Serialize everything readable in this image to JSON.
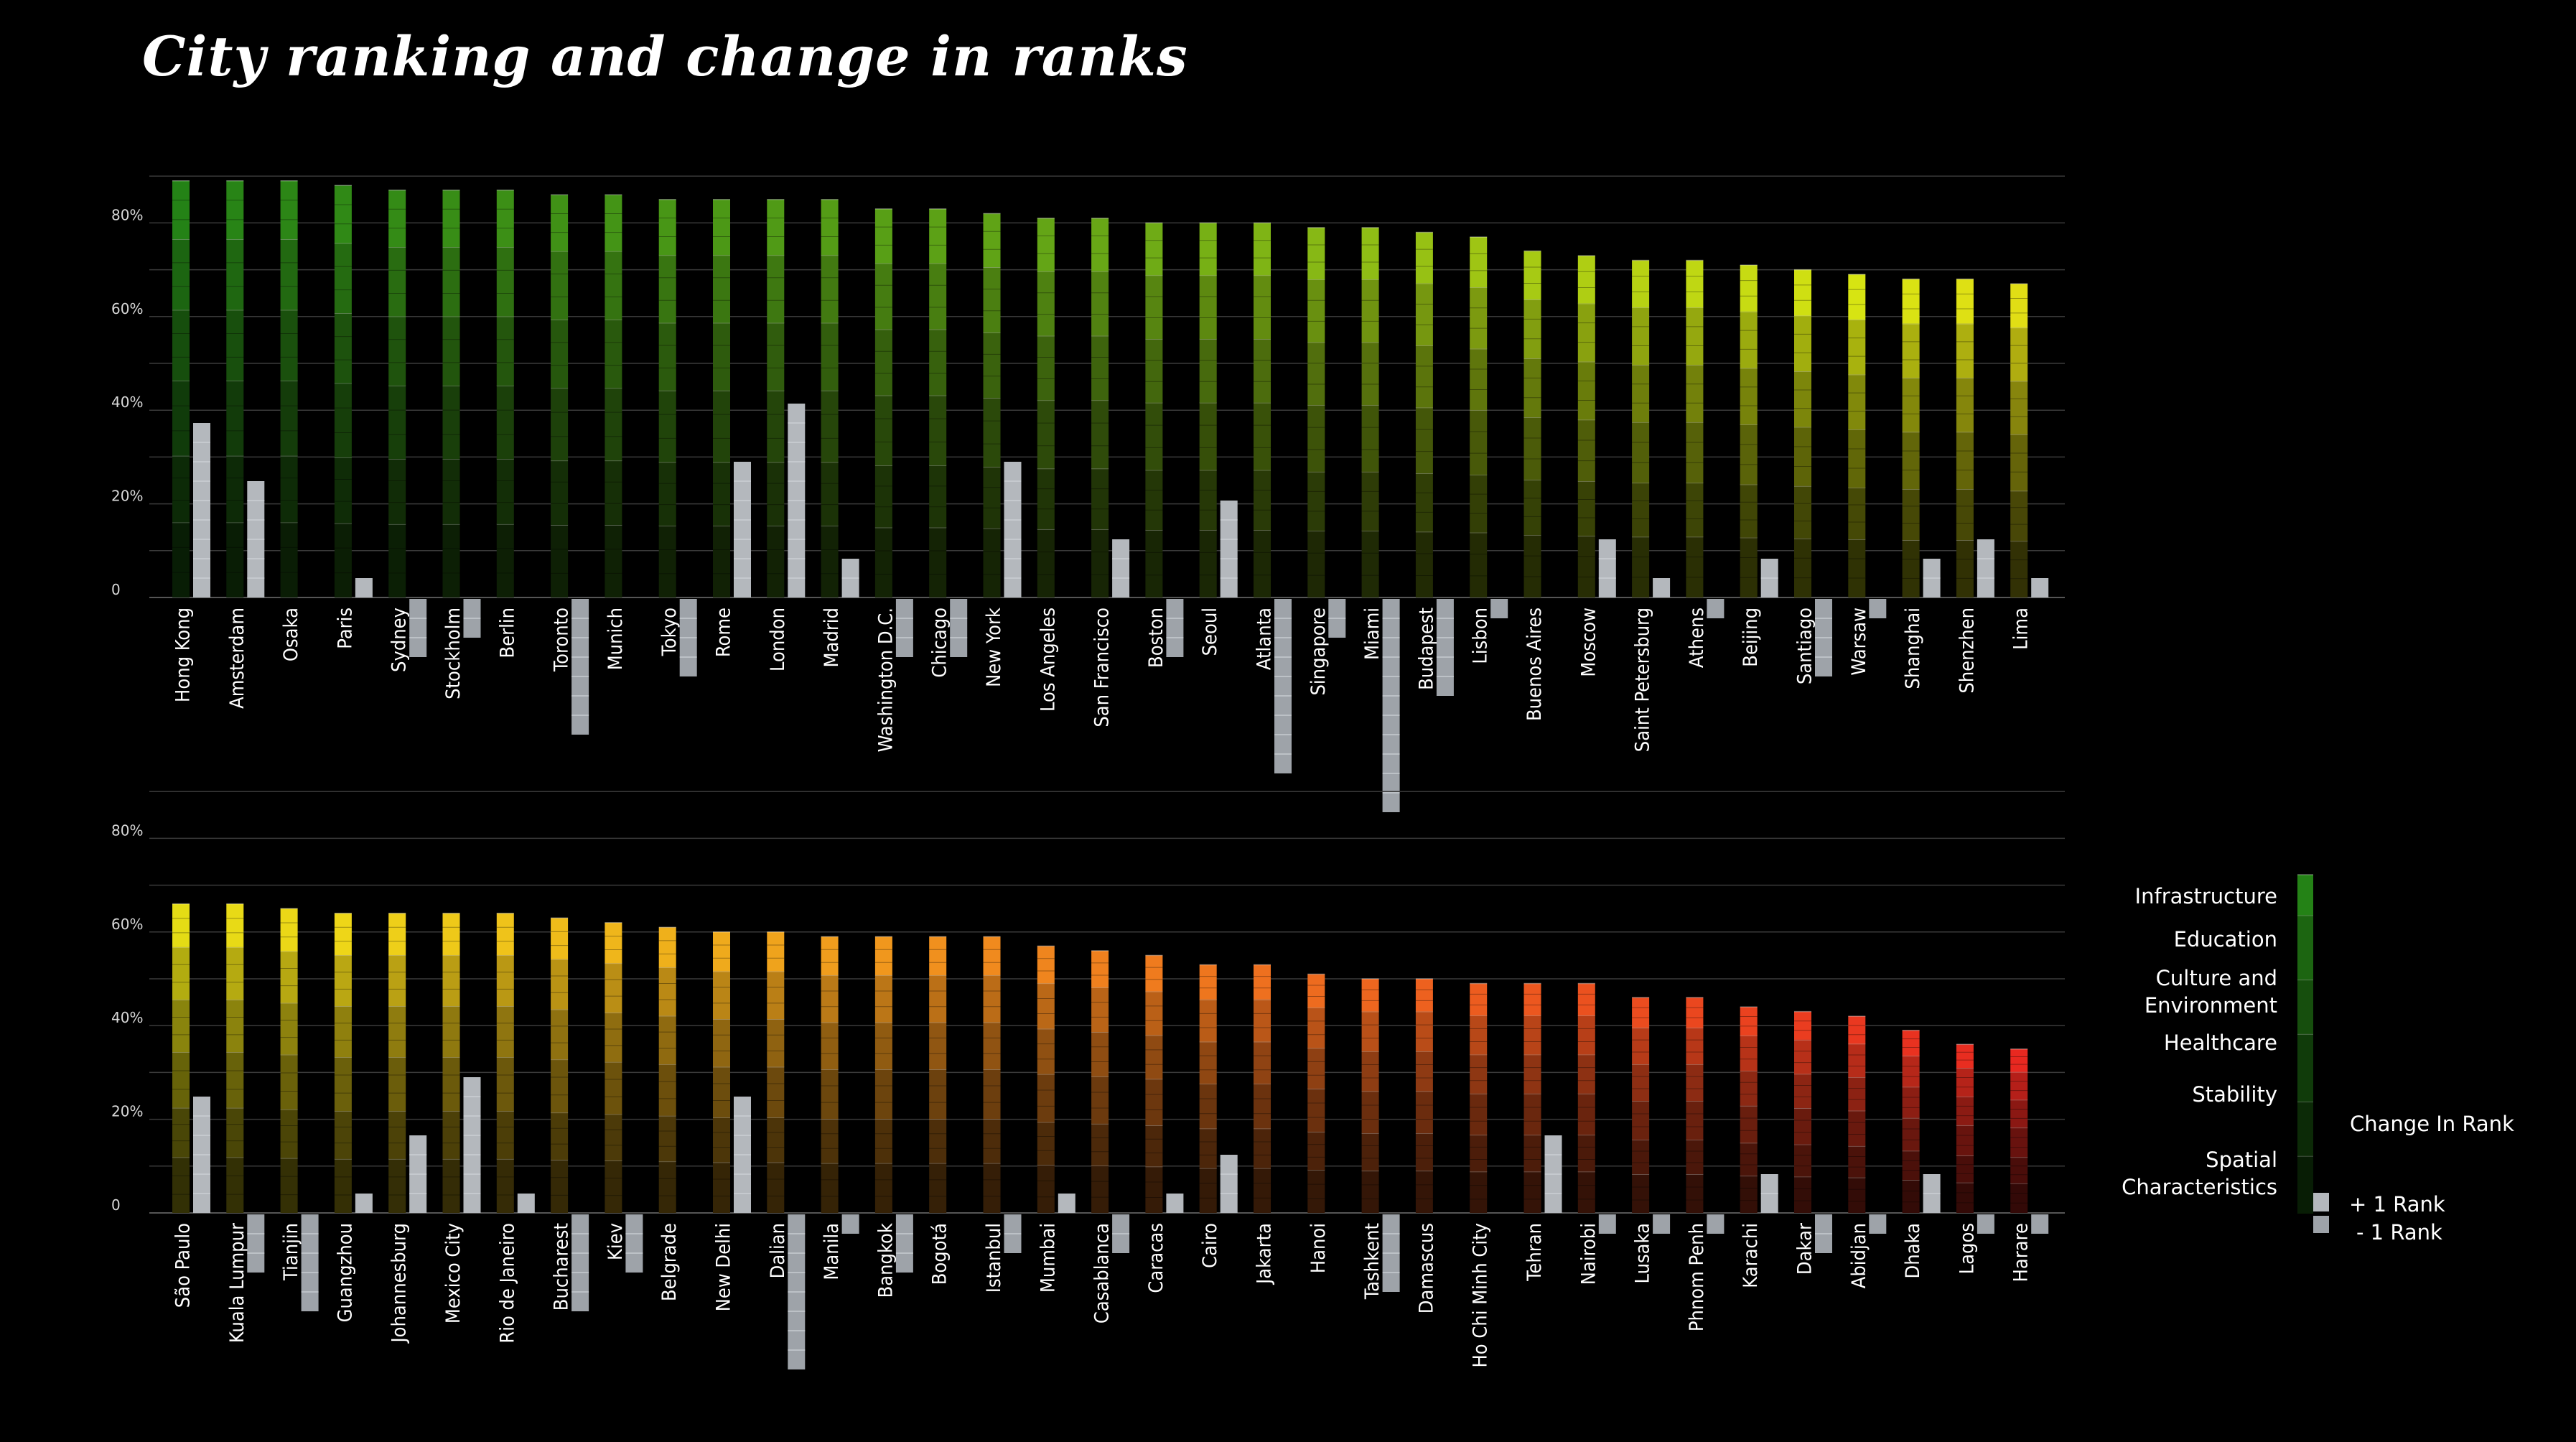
{
  "title": "City ranking and change in ranks",
  "chart_data": {
    "type": "bar",
    "stacked": true,
    "yticks": [
      "80%",
      "60%",
      "40%",
      "20%",
      "0"
    ],
    "ylim": [
      0,
      100
    ],
    "grid": true,
    "legend_position": "right",
    "components": [
      "Infrastructure",
      "Education",
      "Culture and Environment",
      "Healthcare",
      "Stability",
      "Spatial Characteristics"
    ],
    "rank_change_legend": {
      "title": "Change In Rank",
      "plus": "+ 1 Rank",
      "minus": "- 1 Rank"
    },
    "panels": [
      {
        "categories": [
          "Hong Kong",
          "Amsterdam",
          "Osaka",
          "Paris",
          "Sydney",
          "Stockholm",
          "Berlin",
          "Toronto",
          "Munich",
          "Tokyo",
          "Rome",
          "London",
          "Madrid",
          "Washington  D.C.",
          "Chicago",
          "New York",
          "Los Angeles",
          "San  Francisco",
          "Boston",
          "Seoul",
          "Atlanta",
          "Singapore",
          "Miami",
          "Budapest",
          "Lisbon",
          "Buenos  Aires",
          "Moscow",
          "Saint Petersburg",
          "Athens",
          "Beijing",
          "Santiago",
          "Warsaw",
          "Shanghai",
          "Shenzhen",
          "Lima"
        ],
        "values": [
          89,
          89,
          89,
          88,
          87,
          87,
          87,
          86,
          86,
          85,
          85,
          85,
          85,
          83,
          83,
          82,
          81,
          81,
          80,
          80,
          80,
          79,
          79,
          78,
          77,
          74,
          73,
          72,
          72,
          71,
          70,
          69,
          68,
          68,
          67
        ],
        "rank_change": [
          9,
          6,
          0,
          1,
          -3,
          -2,
          0,
          -7,
          0,
          -4,
          7,
          10,
          2,
          -3,
          -3,
          7,
          0,
          3,
          -3,
          5,
          -9,
          -2,
          -11,
          -5,
          -1,
          0,
          3,
          1,
          -1,
          2,
          -4,
          -1,
          2,
          3,
          1
        ]
      },
      {
        "categories": [
          "São Paulo",
          "Kuala Lumpur",
          "Tianjin",
          "Guangzhou",
          "Johannesburg",
          "Mexico City",
          "Rio de Janeiro",
          "Bucharest",
          "Kiev",
          "Belgrade",
          "New Delhi",
          "Dalian",
          "Manila",
          "Bangkok",
          "Bogotá",
          "Istanbul",
          "Mumbai",
          "Casablanca",
          "Caracas",
          "Cairo",
          "Jakarta",
          "Hanoi",
          "Tashkent",
          "Damascus",
          "Ho Chi Minh City",
          "Tehran",
          "Nairobi",
          "Lusaka",
          "Phnom Penh",
          "Karachi",
          "Dakar",
          "Abidjan",
          "Dhaka",
          "Lagos",
          "Harare"
        ],
        "values": [
          66,
          66,
          65,
          64,
          64,
          64,
          64,
          63,
          62,
          61,
          60,
          60,
          59,
          59,
          59,
          59,
          57,
          56,
          55,
          53,
          53,
          51,
          50,
          50,
          49,
          49,
          49,
          46,
          46,
          44,
          43,
          42,
          39,
          36,
          35
        ],
        "rank_change": [
          6,
          -3,
          -5,
          1,
          4,
          7,
          1,
          -5,
          -3,
          0,
          6,
          -8,
          -1,
          -3,
          0,
          -2,
          1,
          -2,
          1,
          3,
          0,
          0,
          -4,
          0,
          0,
          4,
          -1,
          -1,
          -1,
          2,
          -2,
          -1,
          2,
          -1,
          -1
        ]
      }
    ]
  }
}
